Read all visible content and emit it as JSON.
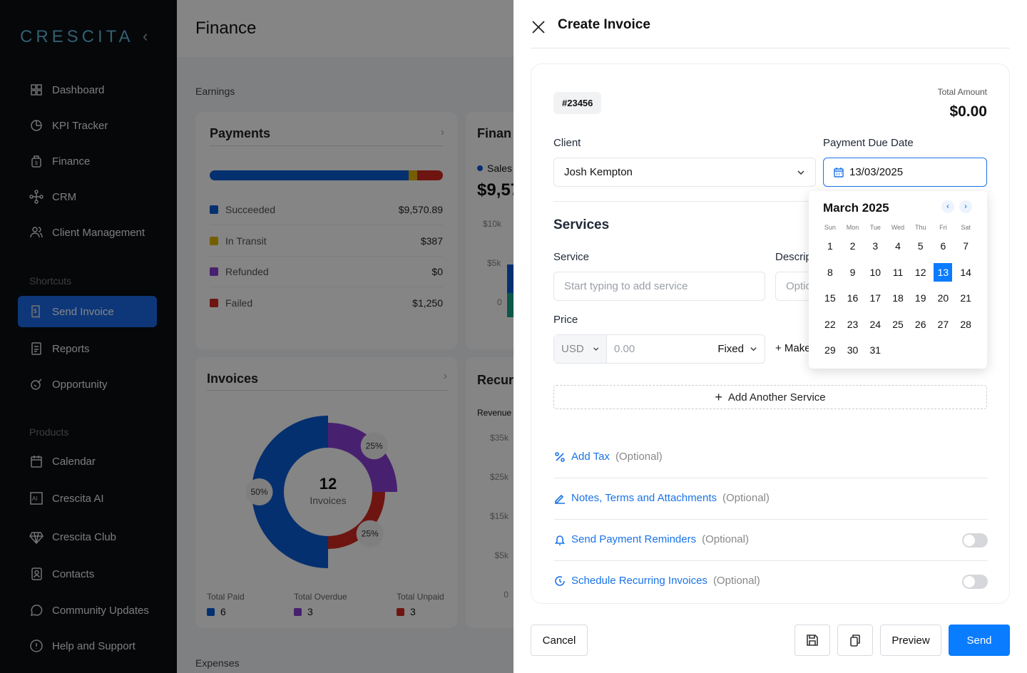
{
  "sidebar": {
    "logo": "CRESCITA",
    "collapse_icon": "chevron-left-icon",
    "items": [
      {
        "label": "Dashboard",
        "icon": "grid-icon"
      },
      {
        "label": "KPI Tracker",
        "icon": "pie-chart-icon"
      },
      {
        "label": "Finance",
        "icon": "money-bag-icon"
      },
      {
        "label": "CRM",
        "icon": "network-icon"
      },
      {
        "label": "Client Management",
        "icon": "users-icon"
      }
    ],
    "shortcuts_label": "Shortcuts",
    "shortcuts": [
      {
        "label": "Send Invoice",
        "icon": "invoice-icon",
        "active": true
      },
      {
        "label": "Reports",
        "icon": "report-icon"
      },
      {
        "label": "Opportunity",
        "icon": "opportunity-icon"
      }
    ],
    "products_label": "Products",
    "products": [
      {
        "label": "Calendar",
        "icon": "calendar-icon"
      },
      {
        "label": "Crescita AI",
        "icon": "ai-icon"
      },
      {
        "label": "Crescita Club",
        "icon": "diamond-icon"
      },
      {
        "label": "Contacts",
        "icon": "contacts-icon"
      },
      {
        "label": "Community Updates",
        "icon": "chat-icon"
      },
      {
        "label": "Help and Support",
        "icon": "alert-circle-icon"
      }
    ]
  },
  "main": {
    "title": "Finance",
    "earnings_label": "Earnings",
    "expenses_label": "Expenses",
    "payments": {
      "title": "Payments",
      "rows": [
        {
          "label": "Succeeded",
          "value": "$9,570.89",
          "amount": 9570.89,
          "color": "#0a5cd6"
        },
        {
          "label": "In Transit",
          "value": "$387",
          "amount": 387,
          "color": "#e0b400"
        },
        {
          "label": "Refunded",
          "value": "$0",
          "amount": 0,
          "color": "#8a3fd6"
        },
        {
          "label": "Failed",
          "value": "$1,250",
          "amount": 1250,
          "color": "#d42a22"
        }
      ]
    },
    "finance_card": {
      "title": "Finan",
      "legend": "Sales",
      "value": "$9,57",
      "ticks": [
        "$10k",
        "$5k",
        "0"
      ]
    },
    "invoices": {
      "title": "Invoices",
      "total": "12",
      "total_label": "Invoices",
      "segments": [
        {
          "label": "Total Paid",
          "count": "6",
          "percent": 50,
          "pct_label": "50%",
          "color": "#0a5cd6"
        },
        {
          "label": "Total Overdue",
          "count": "3",
          "percent": 25,
          "pct_label": "25%",
          "color": "#8a3fd6"
        },
        {
          "label": "Total Unpaid",
          "count": "3",
          "percent": 25,
          "pct_label": "25%",
          "color": "#d42a22"
        }
      ]
    },
    "recurring_card": {
      "title": "Recur",
      "legend": "Revenue",
      "ticks": [
        "$35k",
        "$25k",
        "$15k",
        "$5k",
        "0"
      ]
    }
  },
  "drawer": {
    "title": "Create Invoice",
    "close_icon": "close-icon",
    "invoice_number": "#23456",
    "total_label": "Total Amount",
    "total_value": "$0.00",
    "client_label": "Client",
    "client_value": "Josh Kempton",
    "due_label": "Payment Due Date",
    "due_value": "13/03/2025",
    "services_title": "Services",
    "service_label": "Service",
    "service_placeholder": "Start typing to add service",
    "description_label": "Description",
    "description_placeholder": "Optional",
    "price_label": "Price",
    "currency": "USD",
    "price_placeholder": "0.00",
    "price_type": "Fixed",
    "make_label": "+ Make",
    "add_service": "Add Another Service",
    "options": [
      {
        "label": "Add Tax",
        "suffix": "(Optional)",
        "icon": "percent-icon"
      },
      {
        "label": "Notes, Terms and Attachments",
        "suffix": "(Optional)",
        "icon": "pencil-icon"
      },
      {
        "label": "Send Payment Reminders",
        "suffix": "(Optional)",
        "icon": "bell-icon",
        "toggle": false
      },
      {
        "label": "Schedule Recurring Invoices",
        "suffix": "(Optional)",
        "icon": "recurring-clock-icon",
        "toggle": false
      }
    ],
    "calendar": {
      "month": "March 2025",
      "weekdays": [
        "Sun",
        "Mon",
        "Tue",
        "Wed",
        "Thu",
        "Fri",
        "Sat"
      ],
      "first_weekday": 6,
      "days": 31,
      "selected": 13
    },
    "footer": {
      "cancel": "Cancel",
      "preview": "Preview",
      "send": "Send",
      "save_icon": "save-icon",
      "copy_icon": "copy-icon"
    },
    "accent": "#0a7cff"
  }
}
